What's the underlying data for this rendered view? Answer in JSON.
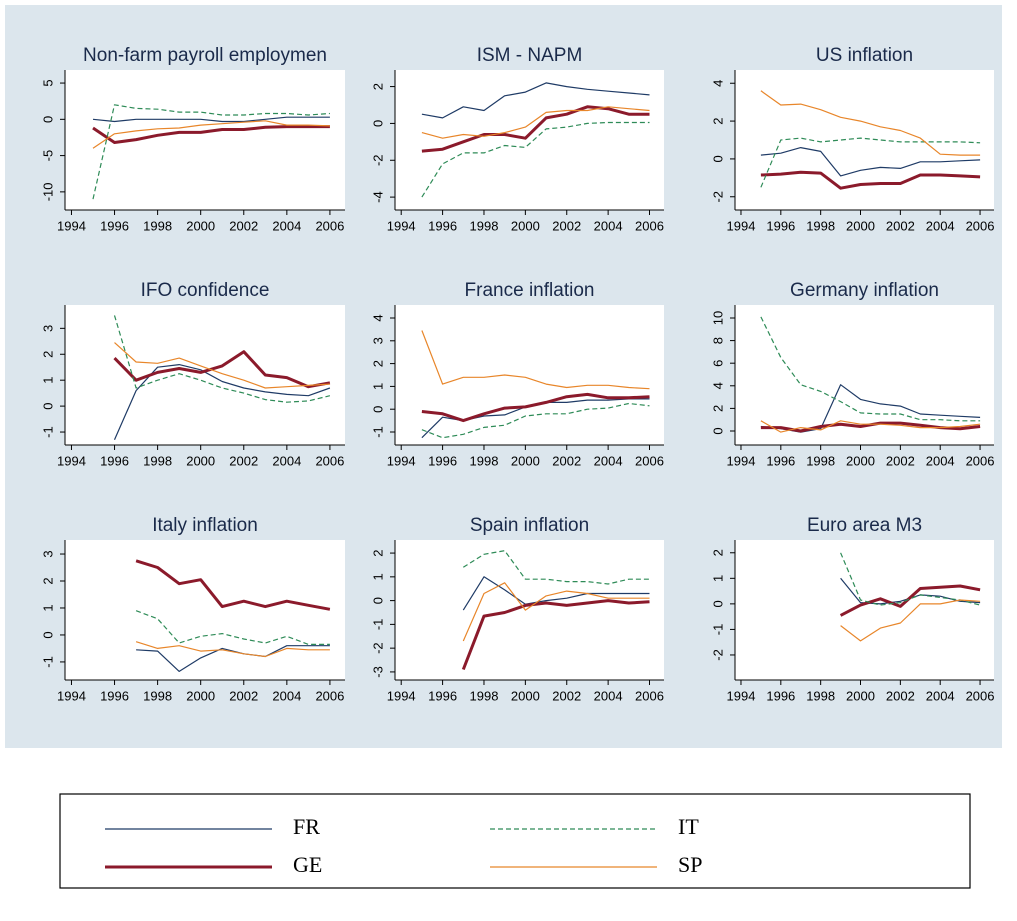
{
  "chart_data": [
    {
      "type": "line",
      "title": "Non-farm payroll employmen",
      "x": [
        1995,
        1996,
        1997,
        1998,
        1999,
        2000,
        2001,
        2002,
        2003,
        2004,
        2005,
        2006
      ],
      "xlim": [
        1993.7,
        2006.7
      ],
      "xticks": [
        1994,
        1996,
        1998,
        2000,
        2002,
        2004,
        2006
      ],
      "ylim": [
        -12.5,
        6.8
      ],
      "yticks": [
        -10,
        -5,
        0,
        5
      ],
      "series": [
        {
          "name": "FR",
          "color": "#1f3b66",
          "style": "solid",
          "weight": "thin",
          "values": [
            0,
            -0.3,
            0,
            0,
            0,
            0,
            -0.3,
            -0.3,
            0,
            0.3,
            0.3,
            0.3
          ]
        },
        {
          "name": "GE",
          "color": "#8b1a2b",
          "style": "solid",
          "weight": "thick",
          "values": [
            -1.2,
            -3.2,
            -2.8,
            -2.2,
            -1.8,
            -1.8,
            -1.4,
            -1.4,
            -1.1,
            -1,
            -1,
            -1
          ]
        },
        {
          "name": "IT",
          "color": "#2e8b57",
          "style": "dashed",
          "weight": "thin",
          "values": [
            -11,
            2,
            1.5,
            1.4,
            1.0,
            1.0,
            0.6,
            0.6,
            0.8,
            0.8,
            0.6,
            0.8
          ]
        },
        {
          "name": "SP",
          "color": "#e8862a",
          "style": "solid",
          "weight": "thin",
          "values": [
            -4,
            -2,
            -1.6,
            -1.3,
            -1.2,
            -0.8,
            -0.6,
            -0.4,
            -0.2,
            -0.8,
            -0.8,
            -0.9
          ]
        }
      ]
    },
    {
      "type": "line",
      "title": "ISM - NAPM",
      "x": [
        1995,
        1996,
        1997,
        1998,
        1999,
        2000,
        2001,
        2002,
        2003,
        2004,
        2005,
        2006
      ],
      "xlim": [
        1993.7,
        2006.7
      ],
      "xticks": [
        1994,
        1996,
        1998,
        2000,
        2002,
        2004,
        2006
      ],
      "ylim": [
        -4.7,
        2.9
      ],
      "yticks": [
        -4,
        -2,
        0,
        2
      ],
      "series": [
        {
          "name": "FR",
          "color": "#1f3b66",
          "style": "solid",
          "weight": "thin",
          "values": [
            0.5,
            0.3,
            0.9,
            0.7,
            1.5,
            1.7,
            2.2,
            2.0,
            1.85,
            1.75,
            1.65,
            1.55
          ]
        },
        {
          "name": "GE",
          "color": "#8b1a2b",
          "style": "solid",
          "weight": "thick",
          "values": [
            -1.5,
            -1.4,
            -1.0,
            -0.6,
            -0.6,
            -0.8,
            0.3,
            0.5,
            0.9,
            0.8,
            0.5,
            0.5
          ]
        },
        {
          "name": "IT",
          "color": "#2e8b57",
          "style": "dashed",
          "weight": "thin",
          "values": [
            -4,
            -2.2,
            -1.6,
            -1.6,
            -1.2,
            -1.3,
            -0.3,
            -0.2,
            0,
            0.05,
            0.05,
            0.05
          ]
        },
        {
          "name": "SP",
          "color": "#e8862a",
          "style": "solid",
          "weight": "thin",
          "values": [
            -0.5,
            -0.8,
            -0.6,
            -0.7,
            -0.5,
            -0.2,
            0.6,
            0.7,
            0.7,
            0.9,
            0.8,
            0.7
          ]
        }
      ]
    },
    {
      "type": "line",
      "title": "US inflation",
      "x": [
        1995,
        1996,
        1997,
        1998,
        1999,
        2000,
        2001,
        2002,
        2003,
        2004,
        2005,
        2006
      ],
      "xlim": [
        1993.7,
        2006.7
      ],
      "xticks": [
        1994,
        1996,
        1998,
        2000,
        2002,
        2004,
        2006
      ],
      "ylim": [
        -2.7,
        4.7
      ],
      "yticks": [
        -2,
        0,
        2,
        4
      ],
      "series": [
        {
          "name": "FR",
          "color": "#1f3b66",
          "style": "solid",
          "weight": "thin",
          "values": [
            0.2,
            0.3,
            0.6,
            0.4,
            -0.9,
            -0.6,
            -0.45,
            -0.5,
            -0.15,
            -0.15,
            -0.1,
            -0.05
          ]
        },
        {
          "name": "GE",
          "color": "#8b1a2b",
          "style": "solid",
          "weight": "thick",
          "values": [
            -0.85,
            -0.8,
            -0.7,
            -0.75,
            -1.55,
            -1.35,
            -1.3,
            -1.3,
            -0.85,
            -0.85,
            -0.9,
            -0.95
          ]
        },
        {
          "name": "IT",
          "color": "#2e8b57",
          "style": "dashed",
          "weight": "thin",
          "values": [
            -1.5,
            1.0,
            1.1,
            0.9,
            1.0,
            1.1,
            1.0,
            0.9,
            0.9,
            0.9,
            0.9,
            0.85
          ]
        },
        {
          "name": "SP",
          "color": "#e8862a",
          "style": "solid",
          "weight": "thin",
          "values": [
            3.6,
            2.85,
            2.9,
            2.6,
            2.2,
            2.0,
            1.7,
            1.5,
            1.1,
            0.25,
            0.2,
            0.2
          ]
        }
      ]
    },
    {
      "type": "line",
      "title": "IFO confidence",
      "x": [
        1995,
        1996,
        1997,
        1998,
        1999,
        2000,
        2001,
        2002,
        2003,
        2004,
        2005,
        2006
      ],
      "xlim": [
        1993.7,
        2006.7
      ],
      "xticks": [
        1994,
        1996,
        1998,
        2000,
        2002,
        2004,
        2006
      ],
      "ylim": [
        -1.5,
        3.9
      ],
      "yticks": [
        -1,
        0,
        1,
        2,
        3
      ],
      "series": [
        {
          "name": "FR",
          "color": "#1f3b66",
          "style": "solid",
          "weight": "thin",
          "values": [
            null,
            -1.3,
            0.6,
            1.5,
            1.6,
            1.4,
            0.95,
            0.7,
            0.55,
            0.45,
            0.4,
            0.7
          ]
        },
        {
          "name": "GE",
          "color": "#8b1a2b",
          "style": "solid",
          "weight": "thick",
          "values": [
            null,
            1.85,
            1.0,
            1.3,
            1.45,
            1.3,
            1.55,
            2.1,
            1.2,
            1.1,
            0.75,
            0.9
          ]
        },
        {
          "name": "IT",
          "color": "#2e8b57",
          "style": "dashed",
          "weight": "thin",
          "values": [
            null,
            3.5,
            0.7,
            1.0,
            1.25,
            1.0,
            0.7,
            0.5,
            0.25,
            0.15,
            0.2,
            0.4
          ]
        },
        {
          "name": "SP",
          "color": "#e8862a",
          "style": "solid",
          "weight": "thin",
          "values": [
            null,
            2.45,
            1.7,
            1.65,
            1.85,
            1.55,
            1.25,
            1.0,
            0.7,
            0.75,
            0.8,
            0.85
          ]
        }
      ]
    },
    {
      "type": "line",
      "title": "France inflation",
      "x": [
        1995,
        1996,
        1997,
        1998,
        1999,
        2000,
        2001,
        2002,
        2003,
        2004,
        2005,
        2006
      ],
      "xlim": [
        1993.7,
        2006.7
      ],
      "xticks": [
        1994,
        1996,
        1998,
        2000,
        2002,
        2004,
        2006
      ],
      "ylim": [
        -1.57,
        4.57
      ],
      "yticks": [
        -1,
        0,
        1,
        2,
        3,
        4
      ],
      "series": [
        {
          "name": "FR",
          "color": "#1f3b66",
          "style": "solid",
          "weight": "thin",
          "values": [
            -1.25,
            -0.35,
            -0.5,
            -0.3,
            -0.25,
            0.1,
            0.3,
            0.3,
            0.4,
            0.4,
            0.45,
            0.45
          ]
        },
        {
          "name": "GE",
          "color": "#8b1a2b",
          "style": "solid",
          "weight": "thick",
          "values": [
            -0.1,
            -0.2,
            -0.5,
            -0.2,
            0.05,
            0.1,
            0.3,
            0.55,
            0.65,
            0.5,
            0.5,
            0.55
          ]
        },
        {
          "name": "IT",
          "color": "#2e8b57",
          "style": "dashed",
          "weight": "thin",
          "values": [
            -0.9,
            -1.25,
            -1.1,
            -0.8,
            -0.7,
            -0.3,
            -0.2,
            -0.2,
            0.0,
            0.05,
            0.25,
            0.15
          ]
        },
        {
          "name": "SP",
          "color": "#e8862a",
          "style": "solid",
          "weight": "thin",
          "values": [
            3.45,
            1.1,
            1.4,
            1.4,
            1.5,
            1.4,
            1.1,
            0.95,
            1.05,
            1.05,
            0.95,
            0.9
          ]
        }
      ]
    },
    {
      "type": "line",
      "title": "Germany inflation",
      "x": [
        1995,
        1996,
        1997,
        1998,
        1999,
        2000,
        2001,
        2002,
        2003,
        2004,
        2005,
        2006
      ],
      "xlim": [
        1993.7,
        2006.7
      ],
      "xticks": [
        1994,
        1996,
        1998,
        2000,
        2002,
        2004,
        2006
      ],
      "ylim": [
        -1.24,
        11.15
      ],
      "yticks": [
        0,
        2,
        4,
        6,
        8,
        10
      ],
      "series": [
        {
          "name": "FR",
          "color": "#1f3b66",
          "style": "solid",
          "weight": "thin",
          "values": [
            0.4,
            0.2,
            -0.1,
            0.2,
            4.1,
            2.8,
            2.4,
            2.2,
            1.5,
            1.4,
            1.3,
            1.2
          ]
        },
        {
          "name": "GE",
          "color": "#8b1a2b",
          "style": "solid",
          "weight": "thick",
          "values": [
            0.3,
            0.3,
            0.0,
            0.4,
            0.6,
            0.4,
            0.7,
            0.7,
            0.5,
            0.3,
            0.2,
            0.4
          ]
        },
        {
          "name": "IT",
          "color": "#2e8b57",
          "style": "dashed",
          "weight": "thin",
          "values": [
            10.1,
            6.5,
            4.1,
            3.5,
            2.6,
            1.6,
            1.5,
            1.5,
            1.0,
            1.0,
            0.9,
            0.9
          ]
        },
        {
          "name": "SP",
          "color": "#e8862a",
          "style": "solid",
          "weight": "thin",
          "values": [
            0.9,
            -0.1,
            0.3,
            0.1,
            0.9,
            0.6,
            0.6,
            0.5,
            0.3,
            0.3,
            0.4,
            0.6
          ]
        }
      ]
    },
    {
      "type": "line",
      "title": "Italy inflation",
      "x": [
        1995,
        1996,
        1997,
        1998,
        1999,
        2000,
        2001,
        2002,
        2003,
        2004,
        2005,
        2006
      ],
      "xlim": [
        1993.7,
        2006.7
      ],
      "xticks": [
        1994,
        1996,
        1998,
        2000,
        2002,
        2004,
        2006
      ],
      "ylim": [
        -1.67,
        3.52
      ],
      "yticks": [
        -1,
        0,
        1,
        2,
        3
      ],
      "series": [
        {
          "name": "FR",
          "color": "#1f3b66",
          "style": "solid",
          "weight": "thin",
          "values": [
            null,
            null,
            -0.55,
            -0.6,
            -1.35,
            -0.85,
            -0.5,
            -0.7,
            -0.8,
            -0.4,
            -0.4,
            -0.4
          ]
        },
        {
          "name": "GE",
          "color": "#8b1a2b",
          "style": "solid",
          "weight": "thick",
          "values": [
            null,
            null,
            2.75,
            2.5,
            1.9,
            2.05,
            1.05,
            1.25,
            1.05,
            1.25,
            1.1,
            0.95
          ]
        },
        {
          "name": "IT",
          "color": "#2e8b57",
          "style": "dashed",
          "weight": "thin",
          "values": [
            null,
            null,
            0.9,
            0.6,
            -0.3,
            -0.05,
            0.05,
            -0.15,
            -0.3,
            -0.05,
            -0.35,
            -0.35
          ]
        },
        {
          "name": "SP",
          "color": "#e8862a",
          "style": "solid",
          "weight": "thin",
          "values": [
            null,
            null,
            -0.25,
            -0.5,
            -0.4,
            -0.6,
            -0.55,
            -0.7,
            -0.8,
            -0.5,
            -0.55,
            -0.55
          ]
        }
      ]
    },
    {
      "type": "line",
      "title": "Spain inflation",
      "x": [
        1995,
        1996,
        1997,
        1998,
        1999,
        2000,
        2001,
        2002,
        2003,
        2004,
        2005,
        2006
      ],
      "xlim": [
        1993.7,
        2006.7
      ],
      "xticks": [
        1994,
        1996,
        1998,
        2000,
        2002,
        2004,
        2006
      ],
      "ylim": [
        -3.34,
        2.55
      ],
      "yticks": [
        -3,
        -2,
        -1,
        0,
        1,
        2
      ],
      "series": [
        {
          "name": "FR",
          "color": "#1f3b66",
          "style": "solid",
          "weight": "thin",
          "values": [
            null,
            null,
            -0.4,
            1.0,
            0.45,
            -0.15,
            0,
            0.1,
            0.3,
            0.3,
            0.3,
            0.3
          ]
        },
        {
          "name": "GE",
          "color": "#8b1a2b",
          "style": "solid",
          "weight": "thick",
          "values": [
            null,
            null,
            -2.9,
            -0.65,
            -0.5,
            -0.2,
            -0.1,
            -0.2,
            -0.1,
            0.0,
            -0.1,
            -0.05
          ]
        },
        {
          "name": "IT",
          "color": "#2e8b57",
          "style": "dashed",
          "weight": "thin",
          "values": [
            null,
            null,
            1.4,
            1.95,
            2.1,
            0.9,
            0.9,
            0.8,
            0.8,
            0.7,
            0.9,
            0.9
          ]
        },
        {
          "name": "SP",
          "color": "#e8862a",
          "style": "solid",
          "weight": "thin",
          "values": [
            null,
            null,
            -1.7,
            0.3,
            0.75,
            -0.4,
            0.2,
            0.4,
            0.3,
            0.1,
            0.1,
            0.1
          ]
        }
      ]
    },
    {
      "type": "line",
      "title": "Euro area M3",
      "x": [
        1995,
        1996,
        1997,
        1998,
        1999,
        2000,
        2001,
        2002,
        2003,
        2004,
        2005,
        2006
      ],
      "xlim": [
        1993.7,
        2006.7
      ],
      "xticks": [
        1994,
        1996,
        1998,
        2000,
        2002,
        2004,
        2006
      ],
      "ylim": [
        -2.98,
        2.5
      ],
      "yticks": [
        -2,
        -1,
        0,
        1,
        2
      ],
      "series": [
        {
          "name": "FR",
          "color": "#1f3b66",
          "style": "solid",
          "weight": "thin",
          "values": [
            null,
            null,
            null,
            null,
            1.0,
            0.05,
            0.0,
            0.1,
            0.35,
            0.3,
            0.1,
            0.05
          ]
        },
        {
          "name": "GE",
          "color": "#8b1a2b",
          "style": "solid",
          "weight": "thick",
          "values": [
            null,
            null,
            null,
            null,
            -0.45,
            -0.05,
            0.2,
            -0.1,
            0.6,
            0.65,
            0.7,
            0.55
          ]
        },
        {
          "name": "IT",
          "color": "#2e8b57",
          "style": "dashed",
          "weight": "thin",
          "values": [
            null,
            null,
            null,
            null,
            2.0,
            0.15,
            -0.05,
            0.05,
            0.35,
            0.25,
            0.15,
            -0.05
          ]
        },
        {
          "name": "SP",
          "color": "#e8862a",
          "style": "solid",
          "weight": "thin",
          "values": [
            null,
            null,
            null,
            null,
            -0.85,
            -1.45,
            -0.95,
            -0.75,
            0.0,
            0.0,
            0.15,
            0.1
          ]
        }
      ]
    }
  ]
}
